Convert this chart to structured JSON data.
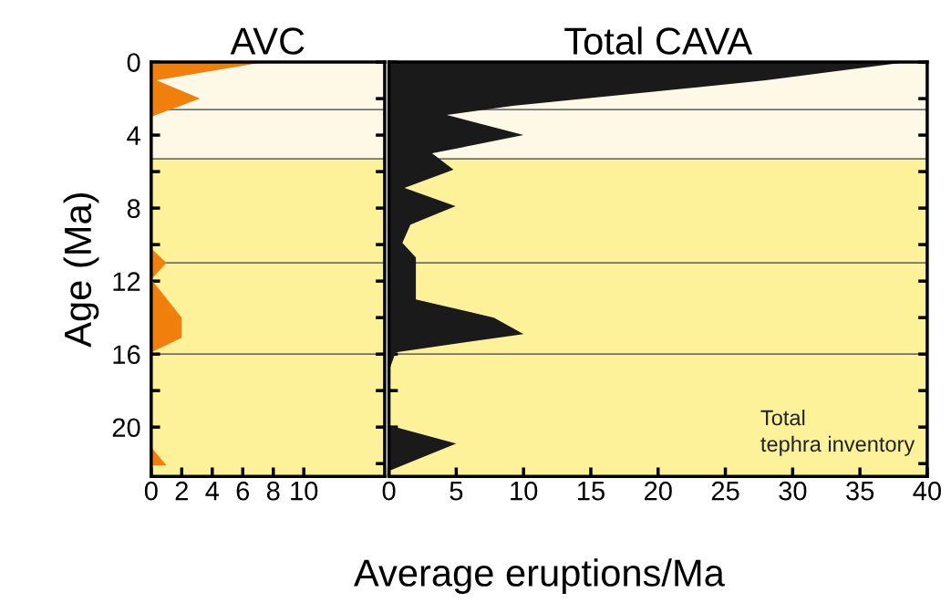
{
  "chart_data": [
    {
      "type": "area",
      "orientation": "horizontal",
      "title": "AVC",
      "ylabel": "Age (Ma)",
      "xlim": [
        0,
        15.3
      ],
      "xticks": [
        0,
        2,
        4,
        6,
        8,
        10
      ],
      "ylim": [
        22.7,
        0
      ],
      "yticks": [
        0,
        {
          "value": 2,
          "label": null
        },
        4,
        {
          "value": 6,
          "label": null
        },
        8,
        {
          "value": 10,
          "label": null
        },
        12,
        {
          "value": 14,
          "label": null
        },
        16,
        {
          "value": 18,
          "label": null
        },
        20,
        {
          "value": 22,
          "label": null
        }
      ],
      "bands": [
        {
          "axis": "y",
          "from": 0,
          "to": 5.3,
          "color": "#fdf9e6"
        },
        {
          "axis": "y",
          "from": 5.3,
          "to": 22.7,
          "color": "#fdf29a"
        }
      ],
      "ref_lines": [
        {
          "axis": "y",
          "value": 2.6,
          "color": "#707070"
        },
        {
          "axis": "y",
          "value": 5.3,
          "color": "#707070"
        },
        {
          "axis": "y",
          "value": 11,
          "color": "#707070"
        },
        {
          "axis": "y",
          "value": 16,
          "color": "#707070"
        }
      ],
      "series": [
        {
          "color": "#f07f0c",
          "x": [
            0,
            1.0,
            2.0,
            3.0,
            10.2,
            11.0,
            11.9,
            14.0,
            15.1,
            15.9,
            21.1,
            22.1,
            22.1
          ],
          "values": [
            7.4,
            0.35,
            3.2,
            0,
            0,
            1.0,
            0,
            2.0,
            2.0,
            0,
            0,
            1.0,
            0
          ]
        }
      ]
    },
    {
      "type": "area",
      "orientation": "horizontal",
      "title": "Total CAVA",
      "xlabel": "Average eruptions/Ma",
      "xlim": [
        0,
        40
      ],
      "xticks": [
        0,
        5,
        10,
        15,
        20,
        25,
        30,
        35,
        40
      ],
      "ylim": [
        22.7,
        0
      ],
      "yticks": [
        0,
        2,
        4,
        6,
        8,
        10,
        12,
        14,
        16,
        18,
        20,
        22
      ],
      "tick_labels": "x",
      "bands": [
        {
          "axis": "y",
          "from": 0,
          "to": 5.3,
          "color": "#fdf9e6"
        },
        {
          "axis": "y",
          "from": 5.3,
          "to": 22.7,
          "color": "#fdf29a"
        }
      ],
      "ref_lines": [
        {
          "axis": "y",
          "value": 2.6,
          "color": "#707070"
        },
        {
          "axis": "y",
          "value": 5.3,
          "color": "#707070"
        },
        {
          "axis": "y",
          "value": 11,
          "color": "#707070"
        },
        {
          "axis": "y",
          "value": 16,
          "color": "#707070"
        }
      ],
      "annotations": [
        "Total\ntephra inventory"
      ],
      "series": [
        {
          "color": "#1a1a1a",
          "x": [
            0,
            1.0,
            2.4,
            2.9,
            4.0,
            5.0,
            5.9,
            6.9,
            7.9,
            8.9,
            9.9,
            10.7,
            13.0,
            14.0,
            14.9,
            15.9,
            16.7,
            19.9,
            20.9,
            22.4
          ],
          "values": [
            38.5,
            28,
            9.2,
            4.3,
            10.0,
            3.2,
            4.8,
            1.15,
            4.95,
            1.6,
            1.0,
            2.0,
            2.0,
            7.8,
            10.0,
            0.5,
            0.1,
            0,
            5.0,
            0
          ]
        }
      ]
    }
  ]
}
